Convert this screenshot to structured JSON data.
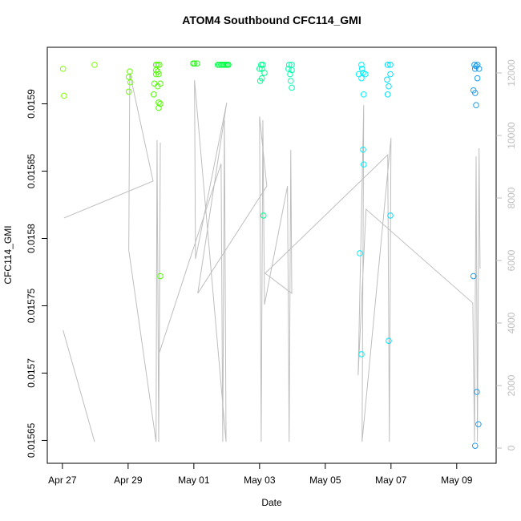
{
  "chart_data": {
    "type": "scatter",
    "title": "ATOM4 Southbound CFC114_GMI",
    "x_label": "Date",
    "y_label": "CFC114_GMI",
    "xlim": [
      -0.46,
      13.2
    ],
    "xticks": [
      {
        "value": 0,
        "label": "Apr 27"
      },
      {
        "value": 2,
        "label": "Apr 29"
      },
      {
        "value": 4,
        "label": "May 01"
      },
      {
        "value": 6,
        "label": "May 03"
      },
      {
        "value": 8,
        "label": "May 05"
      },
      {
        "value": 10,
        "label": "May 07"
      },
      {
        "value": 12,
        "label": "May 09"
      }
    ],
    "ylim": [
      0.015633,
      0.015942
    ],
    "yticks": [
      0.01565,
      0.0157,
      0.01575,
      0.0158,
      0.01585,
      0.0159
    ],
    "y2lim": [
      -487,
      12821
    ],
    "y2ticks": [
      0,
      2000,
      4000,
      6000,
      8000,
      10000,
      12000
    ],
    "y2_color": "#bebebe",
    "series": [
      {
        "color": "#80ff00",
        "x": [
          0.02,
          0.05,
          0.98
        ],
        "values": [
          0.015926,
          0.015906,
          0.015929
        ]
      },
      {
        "color": "#6aff00",
        "x": [
          2.05,
          2.02,
          2.07,
          2.02
        ],
        "values": [
          0.015924,
          0.01592,
          0.015916,
          0.015909
        ]
      },
      {
        "color": "#50ff00",
        "x": [
          2.85,
          2.9,
          2.95,
          2.85,
          2.9,
          2.85,
          2.93,
          2.8,
          2.9,
          2.98,
          2.78,
          2.93,
          2.98,
          2.93,
          2.98
        ],
        "values": [
          0.015929,
          0.015929,
          0.015929,
          0.015925,
          0.015924,
          0.015922,
          0.015922,
          0.015915,
          0.015913,
          0.015915,
          0.015907,
          0.015901,
          0.0159,
          0.015897,
          0.015772
        ]
      },
      {
        "color": "#20ff10",
        "x": [
          4.02,
          4.1,
          3.98
        ],
        "values": [
          0.01593,
          0.01593,
          0.01593
        ]
      },
      {
        "color": "#00ff40",
        "x": [
          4.73,
          4.78,
          4.83,
          4.88,
          4.93,
          4.98,
          5.02,
          5.05
        ],
        "values": [
          0.015929,
          0.015929,
          0.015929,
          0.015929,
          0.015929,
          0.015929,
          0.015929,
          0.015929
        ]
      },
      {
        "color": "#00ff90",
        "x": [
          6.05,
          6.1,
          6.0,
          6.07,
          6.15,
          6.07,
          6.02,
          6.12
        ],
        "values": [
          0.015929,
          0.015929,
          0.015926,
          0.015926,
          0.015923,
          0.015919,
          0.015917,
          0.015817
        ]
      },
      {
        "color": "#00ffb0",
        "x": [
          6.9,
          6.98,
          6.88,
          6.98,
          6.93,
          6.95,
          6.98
        ],
        "values": [
          0.015929,
          0.015929,
          0.015926,
          0.015925,
          0.015922,
          0.015917,
          0.015912
        ]
      },
      {
        "color": "#00f0ff",
        "x": [
          9.1,
          9.12,
          9.02,
          9.15,
          9.22,
          9.1,
          9.17,
          9.05,
          9.15,
          9.17,
          9.1
        ],
        "values": [
          0.015929,
          0.015926,
          0.015922,
          0.015923,
          0.015922,
          0.015919,
          0.015907,
          0.015789,
          0.015866,
          0.015855,
          0.015714
        ]
      },
      {
        "color": "#00e0ff",
        "x": [
          9.9,
          9.98,
          9.88,
          9.98,
          9.93,
          9.9,
          9.98,
          9.93
        ],
        "values": [
          0.015929,
          0.015929,
          0.015918,
          0.015922,
          0.015913,
          0.015907,
          0.015817,
          0.015724
        ]
      },
      {
        "color": "#1e9be8",
        "x": [
          12.54,
          12.59,
          12.63,
          12.56,
          12.68,
          12.63,
          12.51,
          12.56,
          12.59,
          12.51,
          12.61,
          12.66,
          12.56
        ],
        "values": [
          0.015929,
          0.015928,
          0.015929,
          0.015926,
          0.015926,
          0.015919,
          0.01591,
          0.015908,
          0.015899,
          0.015772,
          0.015686,
          0.015662,
          0.015646
        ]
      },
      {
        "type": "line",
        "axis": "y2",
        "color": "#bebebe",
        "x": [
          0.02,
          0.98,
          null,
          0.05,
          2.76,
          2.05,
          2.02,
          2.85,
          2.88,
          2.93,
          2.98,
          2.95,
          4.83,
          4.88,
          4.93,
          4.98,
          4.02,
          4.05,
          5.0,
          4.12,
          6.22,
          6.0,
          6.05,
          6.1,
          6.15,
          6.85,
          6.9,
          6.95,
          6.98,
          6.17,
          9.9,
          9.95,
          10.0,
          9.12,
          9.17,
          9.0,
          9.24,
          12.49,
          12.54,
          12.59,
          12.63,
          12.68,
          12.71
        ],
        "values": [
          3770,
          200,
          null,
          7360,
          8540,
          12000,
          6330,
          200,
          9850,
          200,
          9770,
          3050,
          9100,
          200,
          10490,
          200,
          11770,
          6050,
          11050,
          4950,
          8380,
          10610,
          200,
          10490,
          4590,
          8380,
          200,
          9540,
          4950,
          5590,
          9380,
          200,
          9920,
          200,
          10970,
          2330,
          7640,
          4640,
          200,
          9330,
          200,
          9590,
          5740
        ]
      }
    ]
  }
}
